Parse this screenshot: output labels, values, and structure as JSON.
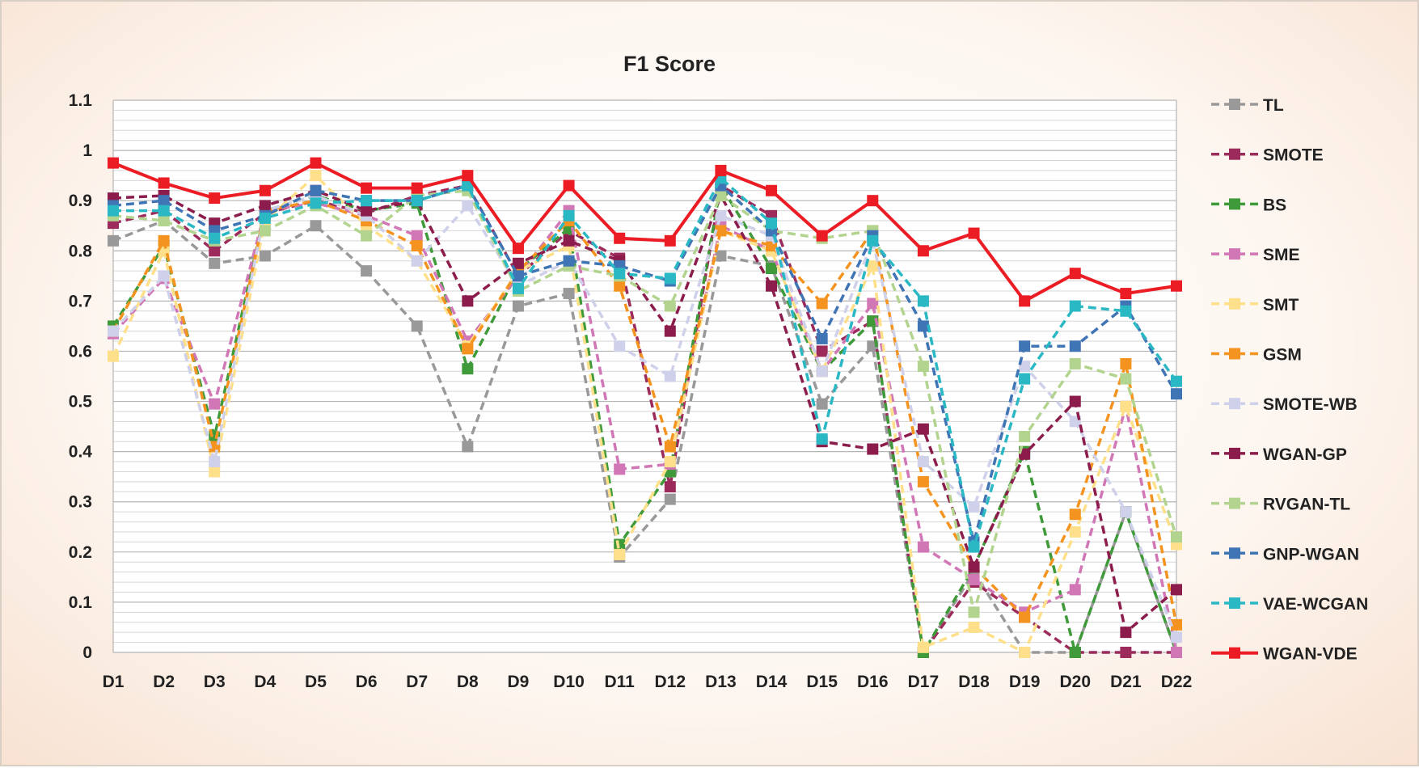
{
  "chart_data": {
    "type": "line",
    "title": "F1 Score",
    "xlabel": "",
    "ylabel": "",
    "ylim": [
      0,
      1.1
    ],
    "y_ticks": [
      "0",
      "0.1",
      "0.2",
      "0.3",
      "0.4",
      "0.5",
      "0.6",
      "0.7",
      "0.8",
      "0.9",
      "1",
      "1.1"
    ],
    "y_tick_values": [
      0,
      0.1,
      0.2,
      0.3,
      0.4,
      0.5,
      0.6,
      0.7,
      0.8,
      0.9,
      1,
      1.1
    ],
    "grid": true,
    "legend_position": "right",
    "categories": [
      "D1",
      "D2",
      "D3",
      "D4",
      "D5",
      "D6",
      "D7",
      "D8",
      "D9",
      "D10",
      "D11",
      "D12",
      "D13",
      "D14",
      "D15",
      "D16",
      "D17",
      "D18",
      "D19",
      "D20",
      "D21",
      "D22"
    ],
    "series": [
      {
        "name": "TL",
        "color": "#999999",
        "dashed": true,
        "values": [
          0.82,
          0.86,
          0.775,
          0.79,
          0.85,
          0.76,
          0.65,
          0.41,
          0.69,
          0.715,
          0.19,
          0.305,
          0.79,
          0.77,
          0.495,
          0.61,
          0.0,
          0.16,
          0.0,
          0.0,
          0.28,
          0.0
        ]
      },
      {
        "name": "SMOTE",
        "color": "#9c2a5a",
        "dashed": true,
        "values": [
          0.855,
          0.88,
          0.8,
          0.875,
          0.9,
          0.875,
          0.91,
          0.93,
          0.75,
          0.84,
          0.785,
          0.33,
          0.93,
          0.87,
          0.6,
          0.66,
          0.0,
          0.14,
          0.07,
          0.0,
          0.0,
          0.0
        ]
      },
      {
        "name": "BS",
        "color": "#3f9a3a",
        "dashed": true,
        "values": [
          0.65,
          0.81,
          0.43,
          0.88,
          0.91,
          0.88,
          0.895,
          0.565,
          0.76,
          0.845,
          0.215,
          0.36,
          0.93,
          0.765,
          0.56,
          0.66,
          0.0,
          0.17,
          0.4,
          0.0,
          0.28,
          0.0
        ]
      },
      {
        "name": "SME",
        "color": "#d277b6",
        "dashed": true,
        "values": [
          0.635,
          0.745,
          0.495,
          0.88,
          0.895,
          0.87,
          0.83,
          0.62,
          0.75,
          0.88,
          0.365,
          0.375,
          0.85,
          0.8,
          0.56,
          0.695,
          0.21,
          0.145,
          0.08,
          0.125,
          0.49,
          0.0
        ]
      },
      {
        "name": "SMT",
        "color": "#ffe08a",
        "dashed": true,
        "values": [
          0.59,
          0.8,
          0.36,
          0.86,
          0.95,
          0.85,
          0.78,
          0.61,
          0.76,
          0.81,
          0.195,
          0.38,
          0.84,
          0.8,
          0.56,
          0.77,
          0.01,
          0.05,
          0.0,
          0.24,
          0.49,
          0.215
        ]
      },
      {
        "name": "GSM",
        "color": "#f4931f",
        "dashed": true,
        "values": [
          0.64,
          0.82,
          0.41,
          0.88,
          0.9,
          0.86,
          0.81,
          0.605,
          0.76,
          0.86,
          0.73,
          0.41,
          0.84,
          0.81,
          0.695,
          0.84,
          0.34,
          0.17,
          0.07,
          0.275,
          0.575,
          0.055
        ]
      },
      {
        "name": "SMOTE-WB",
        "color": "#cfd0ea",
        "dashed": true,
        "values": [
          0.64,
          0.75,
          0.38,
          0.88,
          0.91,
          0.87,
          0.78,
          0.89,
          0.73,
          0.78,
          0.61,
          0.55,
          0.87,
          0.83,
          0.56,
          0.82,
          0.38,
          0.29,
          0.57,
          0.46,
          0.28,
          0.03
        ]
      },
      {
        "name": "WGAN-GP",
        "color": "#8b1c4b",
        "dashed": true,
        "values": [
          0.905,
          0.91,
          0.855,
          0.89,
          0.92,
          0.88,
          0.9,
          0.7,
          0.775,
          0.82,
          0.78,
          0.64,
          0.91,
          0.73,
          0.42,
          0.405,
          0.445,
          0.17,
          0.395,
          0.5,
          0.04,
          0.125
        ]
      },
      {
        "name": "RVGAN-TL",
        "color": "#b3d48f",
        "dashed": true,
        "values": [
          0.87,
          0.86,
          0.82,
          0.84,
          0.89,
          0.83,
          0.91,
          0.92,
          0.72,
          0.77,
          0.75,
          0.69,
          0.91,
          0.84,
          0.825,
          0.84,
          0.57,
          0.08,
          0.43,
          0.575,
          0.545,
          0.23
        ]
      },
      {
        "name": "GNP-WGAN",
        "color": "#3f74b5",
        "dashed": true,
        "values": [
          0.89,
          0.9,
          0.84,
          0.87,
          0.92,
          0.9,
          0.9,
          0.93,
          0.75,
          0.78,
          0.77,
          0.74,
          0.93,
          0.84,
          0.625,
          0.83,
          0.65,
          0.22,
          0.61,
          0.61,
          0.69,
          0.515
        ]
      },
      {
        "name": "VAE-WCGAN",
        "color": "#2ab8c4",
        "dashed": true,
        "values": [
          0.88,
          0.88,
          0.825,
          0.865,
          0.895,
          0.9,
          0.9,
          0.93,
          0.725,
          0.87,
          0.755,
          0.745,
          0.945,
          0.855,
          0.425,
          0.82,
          0.7,
          0.21,
          0.545,
          0.69,
          0.68,
          0.54
        ]
      },
      {
        "name": "WGAN-VDE",
        "color": "#ec1c24",
        "dashed": false,
        "values": [
          0.975,
          0.935,
          0.905,
          0.92,
          0.975,
          0.925,
          0.925,
          0.95,
          0.805,
          0.93,
          0.825,
          0.82,
          0.96,
          0.92,
          0.83,
          0.9,
          0.8,
          0.835,
          0.7,
          0.755,
          0.715,
          0.73
        ]
      }
    ]
  }
}
